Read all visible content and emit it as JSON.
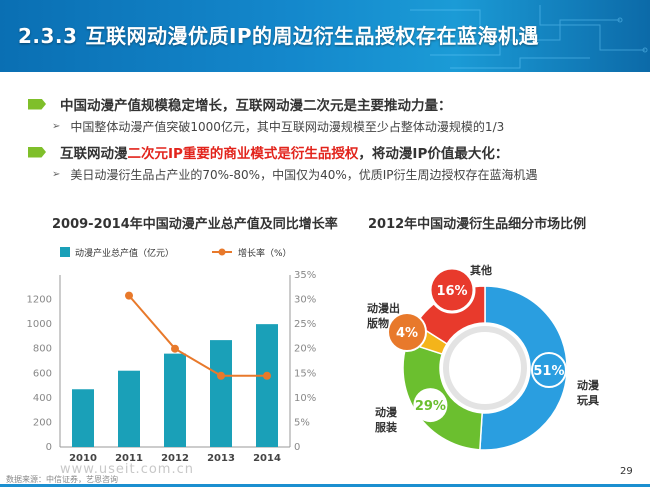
{
  "header": {
    "section_number": "2.3.3",
    "title": "互联网动漫优质IP的周边衍生品授权存在蓝海机遇"
  },
  "bullets": [
    {
      "text": "中国动漫产值规模稳定增长，互联网动漫二次元是主要推动力量：",
      "sub": "中国整体动漫产值突破1000亿元，其中互联网动漫规模至少占整体动漫规模的1/3"
    },
    {
      "text_before": "互联网动漫",
      "text_highlight": "二次元IP重要的商业模式是衍生品授权",
      "text_after": "，将动漫IP价值最大化：",
      "sub": "美日动漫衍生品占产业的70%-80%，中国仅为40%，优质IP衍生周边授权存在蓝海机遇"
    }
  ],
  "charts_titles": {
    "left": "2009-2014年中国动漫产业总产值及同比增长率",
    "right": "2012年中国动漫衍生品细分市场比例"
  },
  "chart_data": [
    {
      "type": "bar",
      "title": "2009-2014年中国动漫产业总产值及同比增长率",
      "categories": [
        "2010",
        "2011",
        "2012",
        "2013",
        "2014"
      ],
      "series": [
        {
          "name": "动漫产业总产值（亿元）",
          "type": "bar",
          "values": [
            470,
            621,
            760,
            870,
            1000
          ],
          "color": "#1aa0b8"
        },
        {
          "name": "增长率（%）",
          "type": "line",
          "values": [
            null,
            30.8,
            20,
            14.5,
            14.5
          ],
          "color": "#e8792b"
        }
      ],
      "y_left": {
        "ticks": [
          "0",
          "200",
          "400",
          "600",
          "800",
          "1000",
          "1200"
        ],
        "lim": [
          0,
          1400
        ]
      },
      "y_right": {
        "ticks": [
          "0",
          "5%",
          "10%",
          "15%",
          "20%",
          "25%",
          "30%",
          "35%"
        ],
        "lim": [
          0,
          35
        ]
      },
      "legend": "top"
    },
    {
      "type": "pie",
      "title": "2012年中国动漫衍生品细分市场比例",
      "slices": [
        {
          "name": "动漫玩具",
          "label": "51%",
          "value": 51,
          "color": "#2a9ee0"
        },
        {
          "name": "动漫服装",
          "label": "29%",
          "value": 29,
          "color": "#6bbf2f"
        },
        {
          "name": "动漫出版物",
          "label": "4%",
          "value": 4,
          "color": "#f4b41a"
        },
        {
          "name": "其他",
          "label": "16%",
          "value": 16,
          "color": "#e83a2c"
        }
      ],
      "slice_label_texts": {
        "toys": [
          "动漫",
          "玩具"
        ],
        "clothing": [
          "动漫",
          "服装"
        ],
        "publications": [
          "动漫出",
          "版物"
        ],
        "other": "其他"
      },
      "bubble_labels": {
        "publications": "4%",
        "other": "16%"
      },
      "bubble_colors": {
        "publications": "#e8792b"
      }
    }
  ],
  "footer": {
    "source": "数据来源：中信证券，艺恩咨询",
    "page": "29",
    "watermark": "www.useit.com.cn"
  }
}
